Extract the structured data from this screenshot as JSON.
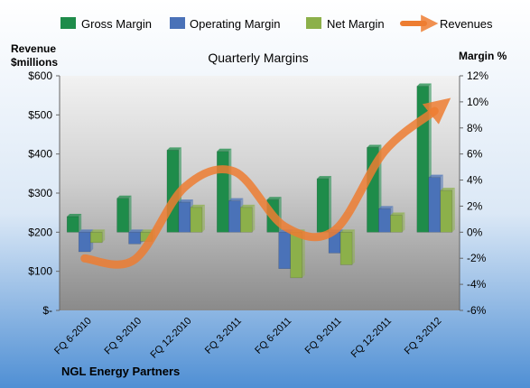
{
  "chart_data": {
    "type": "bar",
    "title": "Quarterly Margins",
    "footer": "NGL Energy Partners",
    "left_axis": {
      "label_line1": "Revenue",
      "label_line2": "$millions",
      "min": 0,
      "max": 600,
      "ticks": [
        0,
        100,
        200,
        300,
        400,
        500,
        600
      ],
      "tick_labels": [
        "$-",
        "$100",
        "$200",
        "$300",
        "$400",
        "$500",
        "$600"
      ]
    },
    "right_axis": {
      "label": "Margin %",
      "min": -6,
      "max": 12,
      "ticks": [
        -6,
        -4,
        -2,
        0,
        2,
        4,
        6,
        8,
        10,
        12
      ],
      "tick_labels": [
        "-6%",
        "-4%",
        "-2%",
        "0%",
        "2%",
        "4%",
        "6%",
        "8%",
        "10%",
        "12%"
      ]
    },
    "categories": [
      "FQ 6-2010",
      "FQ 9-2010",
      "FQ 12-2010",
      "FQ 3-2011",
      "FQ 6-2011",
      "FQ 9-2011",
      "FQ 12-2011",
      "FQ 3-2012"
    ],
    "series": [
      {
        "name": "Gross Margin",
        "type": "bar",
        "axis": "right",
        "color": "#1e8c4a",
        "values": [
          1.2,
          2.6,
          6.3,
          6.2,
          2.5,
          4.1,
          6.5,
          11.2
        ]
      },
      {
        "name": "Operating Margin",
        "type": "bar",
        "axis": "right",
        "color": "#4a72b8",
        "values": [
          -1.5,
          -0.9,
          2.3,
          2.4,
          -2.8,
          -1.6,
          1.8,
          4.2
        ]
      },
      {
        "name": "Net Margin",
        "type": "bar",
        "axis": "right",
        "color": "#8cb04a",
        "values": [
          -0.8,
          -0.7,
          1.9,
          1.9,
          -3.5,
          -2.5,
          1.3,
          3.2
        ]
      },
      {
        "name": "Revenues",
        "type": "line",
        "axis": "left",
        "color": "#ed7d31",
        "values": [
          133,
          130,
          315,
          355,
          215,
          205,
          407,
          510
        ]
      }
    ],
    "legend_position": "top",
    "grid": false
  }
}
